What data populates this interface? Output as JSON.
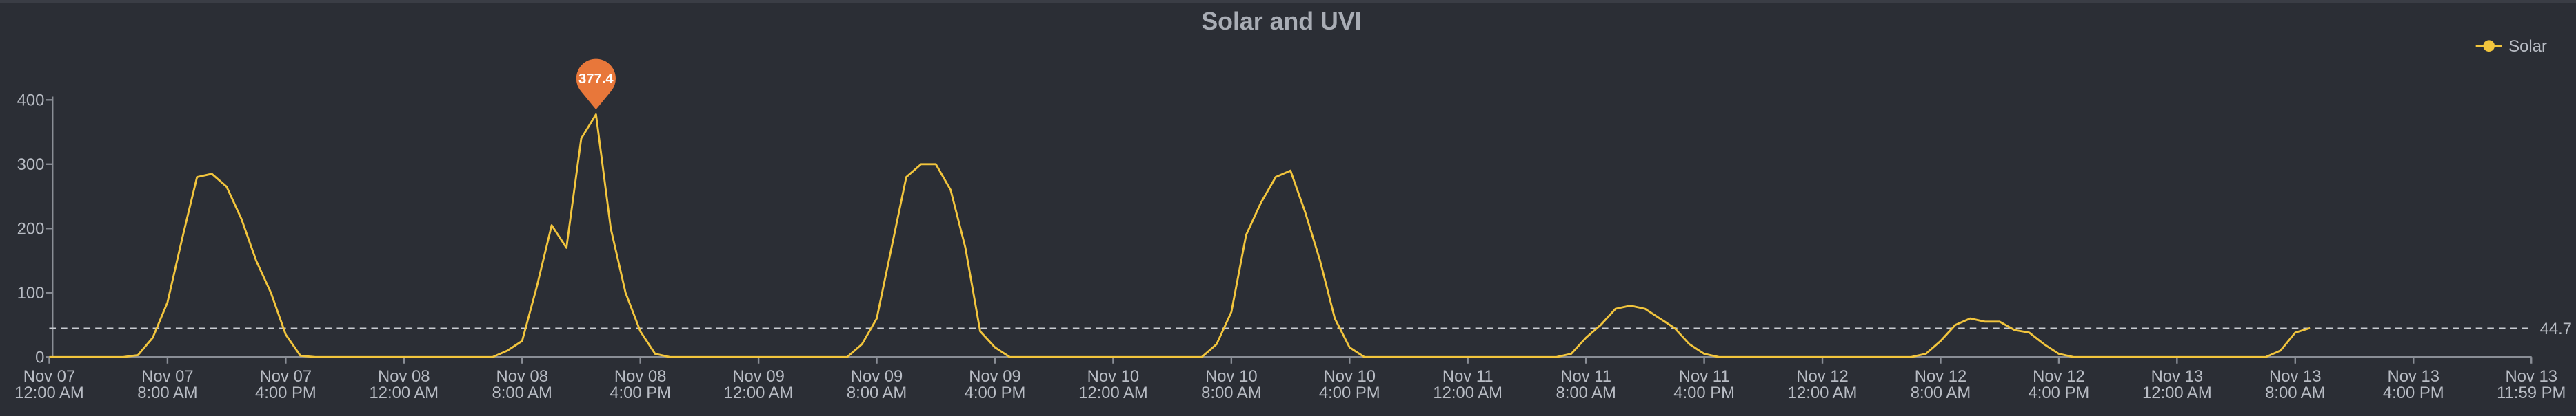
{
  "chart_data": {
    "type": "line",
    "title": "Solar and UVI",
    "x": [
      0,
      1,
      2,
      3,
      4,
      5,
      6,
      7,
      8,
      9,
      10,
      11,
      12,
      13,
      14,
      15,
      16,
      17,
      18,
      19,
      20,
      21,
      22,
      23,
      24,
      25,
      26,
      27,
      28,
      29,
      30,
      31,
      32,
      33,
      34,
      35,
      36,
      37,
      38,
      39,
      40,
      41,
      42,
      43,
      44,
      45,
      46,
      47,
      48,
      49,
      50,
      51,
      52,
      53,
      54,
      55,
      56,
      57,
      58,
      59,
      60,
      61,
      62,
      63,
      64,
      65,
      66,
      67,
      68,
      69,
      70,
      71,
      72,
      73,
      74,
      75,
      76,
      77,
      78,
      79,
      80,
      81,
      82,
      83,
      84,
      85,
      86,
      87,
      88,
      89,
      90,
      91,
      92,
      93,
      94,
      95,
      96,
      97,
      98,
      99,
      100,
      101,
      102,
      103,
      104,
      105,
      106,
      107,
      108,
      109,
      110,
      111,
      112,
      113,
      114,
      115,
      116,
      117,
      118,
      119,
      120,
      121,
      122,
      123,
      124,
      125,
      126,
      127,
      128,
      129,
      130,
      131,
      132,
      133,
      134,
      135,
      136,
      137,
      138,
      139,
      140,
      141,
      142,
      143,
      144,
      145,
      146,
      147,
      148,
      149,
      150,
      151,
      152,
      153
    ],
    "series": [
      {
        "name": "Solar",
        "color": "#f2c53d",
        "values": [
          0,
          0,
          0,
          0,
          0,
          0,
          3,
          30,
          85,
          185,
          280,
          285,
          265,
          215,
          150,
          100,
          35,
          2,
          0,
          0,
          0,
          0,
          0,
          0,
          0,
          0,
          0,
          0,
          0,
          0,
          0,
          10,
          25,
          110,
          205,
          170,
          340,
          377.4,
          200,
          100,
          40,
          5,
          0,
          0,
          0,
          0,
          0,
          0,
          0,
          0,
          0,
          0,
          0,
          0,
          0,
          20,
          60,
          170,
          280,
          300,
          300,
          260,
          170,
          40,
          15,
          0,
          0,
          0,
          0,
          0,
          0,
          0,
          0,
          0,
          0,
          0,
          0,
          0,
          0,
          20,
          70,
          190,
          240,
          280,
          290,
          225,
          150,
          60,
          15,
          0,
          0,
          0,
          0,
          0,
          0,
          0,
          0,
          0,
          0,
          0,
          0,
          0,
          0,
          5,
          30,
          50,
          75,
          80,
          75,
          60,
          45,
          20,
          5,
          0,
          0,
          0,
          0,
          0,
          0,
          0,
          0,
          0,
          0,
          0,
          0,
          0,
          0,
          5,
          25,
          50,
          60,
          55,
          55,
          42,
          38,
          20,
          5,
          0,
          0,
          0,
          0,
          0,
          0,
          0,
          0,
          0,
          0,
          0,
          0,
          0,
          0,
          10,
          38,
          45
        ]
      }
    ],
    "xlim": [
      0,
      168
    ],
    "xticks": [
      {
        "value": 0,
        "label": [
          "Nov 07",
          "12:00 AM"
        ]
      },
      {
        "value": 8,
        "label": [
          "Nov 07",
          "8:00 AM"
        ]
      },
      {
        "value": 16,
        "label": [
          "Nov 07",
          "4:00 PM"
        ]
      },
      {
        "value": 24,
        "label": [
          "Nov 08",
          "12:00 AM"
        ]
      },
      {
        "value": 32,
        "label": [
          "Nov 08",
          "8:00 AM"
        ]
      },
      {
        "value": 40,
        "label": [
          "Nov 08",
          "4:00 PM"
        ]
      },
      {
        "value": 48,
        "label": [
          "Nov 09",
          "12:00 AM"
        ]
      },
      {
        "value": 56,
        "label": [
          "Nov 09",
          "8:00 AM"
        ]
      },
      {
        "value": 64,
        "label": [
          "Nov 09",
          "4:00 PM"
        ]
      },
      {
        "value": 72,
        "label": [
          "Nov 10",
          "12:00 AM"
        ]
      },
      {
        "value": 80,
        "label": [
          "Nov 10",
          "8:00 AM"
        ]
      },
      {
        "value": 88,
        "label": [
          "Nov 10",
          "4:00 PM"
        ]
      },
      {
        "value": 96,
        "label": [
          "Nov 11",
          "12:00 AM"
        ]
      },
      {
        "value": 104,
        "label": [
          "Nov 11",
          "8:00 AM"
        ]
      },
      {
        "value": 112,
        "label": [
          "Nov 11",
          "4:00 PM"
        ]
      },
      {
        "value": 120,
        "label": [
          "Nov 12",
          "12:00 AM"
        ]
      },
      {
        "value": 128,
        "label": [
          "Nov 12",
          "8:00 AM"
        ]
      },
      {
        "value": 136,
        "label": [
          "Nov 12",
          "4:00 PM"
        ]
      },
      {
        "value": 144,
        "label": [
          "Nov 13",
          "12:00 AM"
        ]
      },
      {
        "value": 152,
        "label": [
          "Nov 13",
          "8:00 AM"
        ]
      },
      {
        "value": 160,
        "label": [
          "Nov 13",
          "4:00 PM"
        ]
      },
      {
        "value": 167.98,
        "label": [
          "Nov 13",
          "11:59 PM"
        ]
      }
    ],
    "ylim": [
      0,
      400
    ],
    "yticks": [
      0,
      100,
      200,
      300,
      400
    ],
    "reference_line": 44.7,
    "legend": "top-right"
  }
}
